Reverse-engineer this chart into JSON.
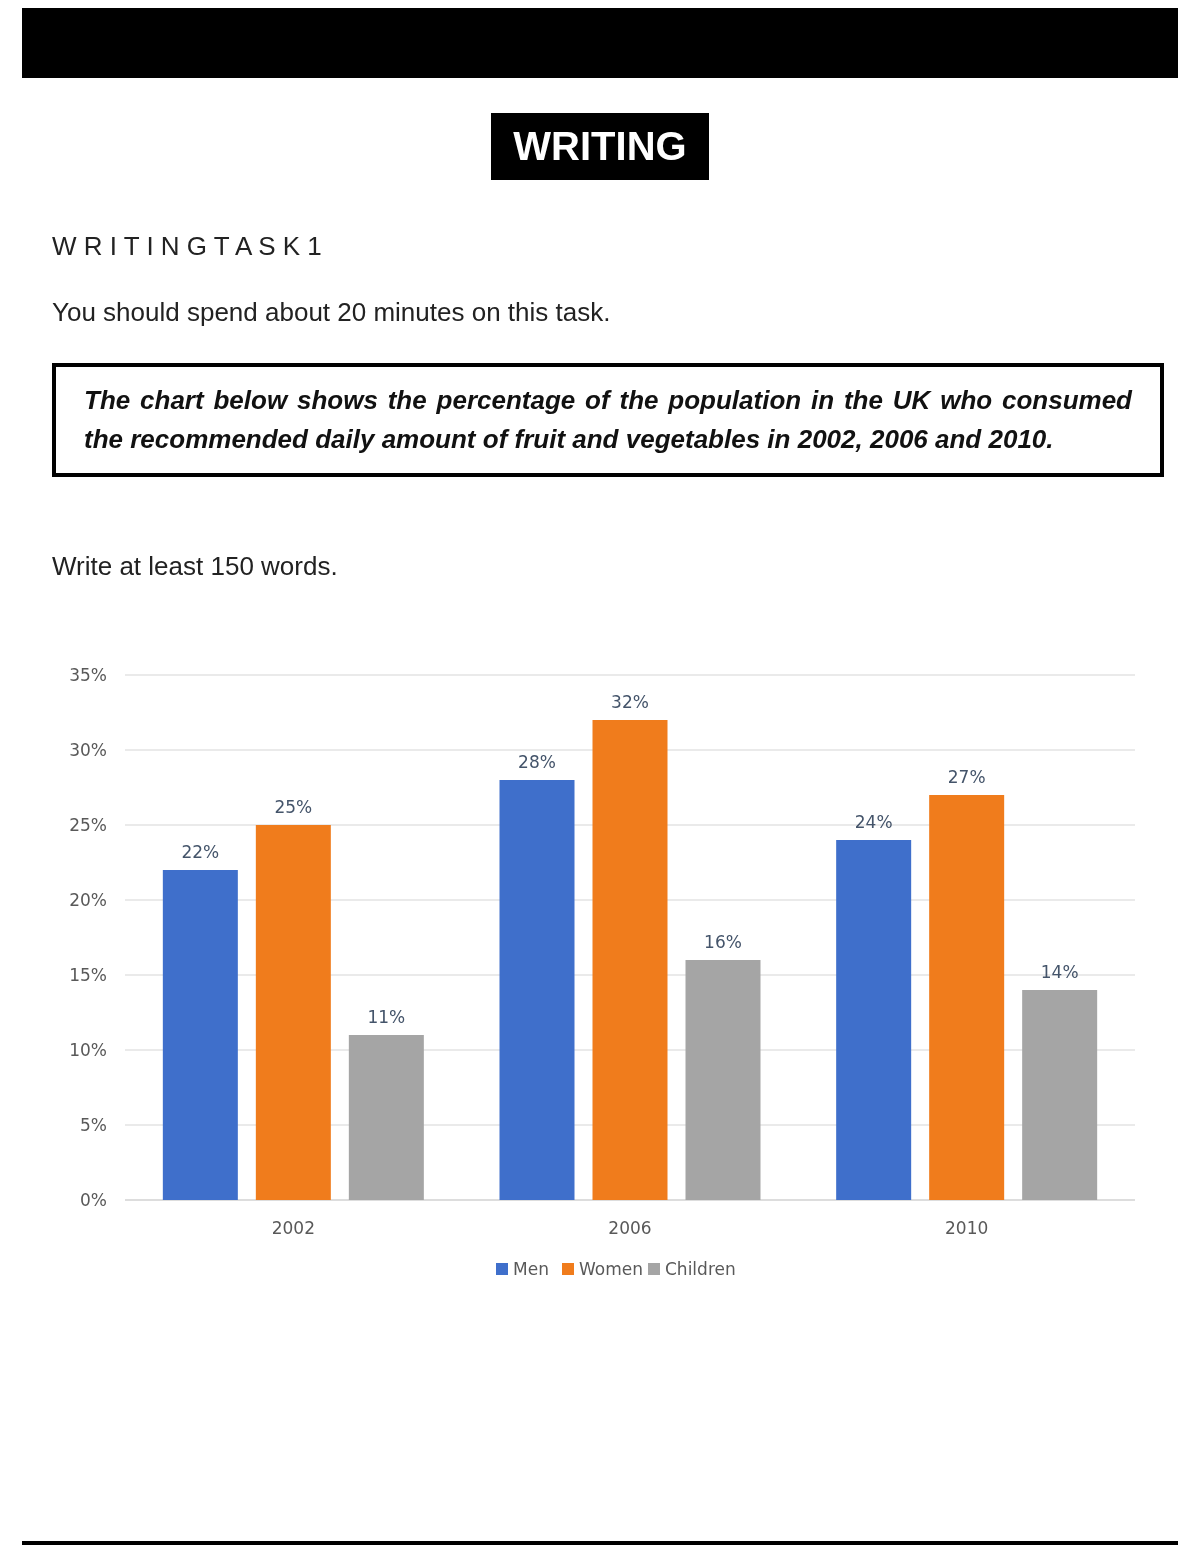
{
  "chart_data": {
    "type": "bar",
    "title": "WRITING",
    "subtitle": "W R I T I N G T A S K 1",
    "annotations": [
      "You should spend about 20 minutes on this task.",
      "The chart below shows the percentage of the population in the UK who consumed the recommended daily amount of fruit and vegetables in 2002, 2006 and 2010.",
      "Write at least 150 words."
    ],
    "categories": [
      "2002",
      "2006",
      "2010"
    ],
    "series": [
      {
        "name": "Men",
        "color": "#3f6fcb",
        "values": [
          22,
          28,
          24
        ],
        "value_labels": [
          "22%",
          "28%",
          "24%"
        ]
      },
      {
        "name": "Women",
        "color": "#f07c1c",
        "values": [
          25,
          32,
          27
        ],
        "value_labels": [
          "25%",
          "32%",
          "27%"
        ]
      },
      {
        "name": "Children",
        "color": "#a5a5a5",
        "values": [
          11,
          16,
          14
        ],
        "value_labels": [
          "11%",
          "16%",
          "14%"
        ]
      }
    ],
    "ylim": [
      0,
      35
    ],
    "yticks": [
      {
        "value": 0,
        "label": "0%"
      },
      {
        "value": 5,
        "label": "5%"
      },
      {
        "value": 10,
        "label": "10%"
      },
      {
        "value": 15,
        "label": "15%"
      },
      {
        "value": 20,
        "label": "20%"
      },
      {
        "value": 25,
        "label": "25%"
      },
      {
        "value": 30,
        "label": "30%"
      },
      {
        "value": 35,
        "label": "35%"
      }
    ],
    "grid": "y",
    "legend": "bottom"
  }
}
